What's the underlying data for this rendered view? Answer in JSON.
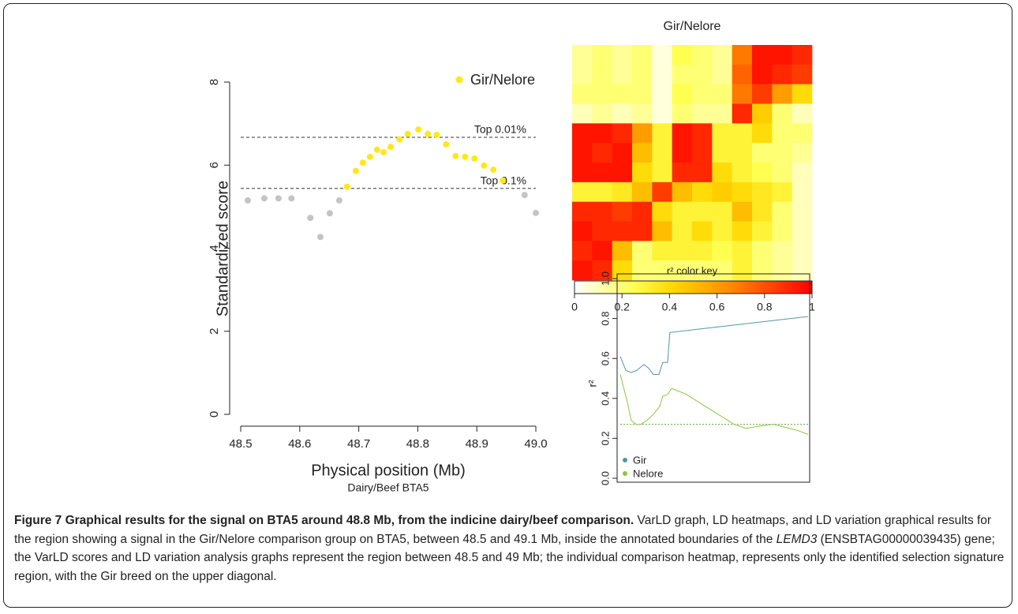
{
  "chart_data": [
    {
      "type": "scatter",
      "ylabel": "Standardized score",
      "xlabel": "Physical position (Mb)",
      "subtitle": "Dairy/Beef BTA5",
      "xlim": [
        48.5,
        49.0
      ],
      "xticks": [
        48.5,
        48.6,
        48.7,
        48.8,
        48.9,
        {
          "value": 49.0,
          "label": "49.0"
        }
      ],
      "ylim": [
        0,
        8
      ],
      "yticks": [
        0,
        2,
        4,
        6,
        8
      ],
      "series": [
        {
          "color": "#c4c4c4",
          "x": [
            48.512,
            48.54,
            48.564,
            48.586,
            48.618,
            48.635,
            48.651,
            48.667,
            48.981,
            49.0
          ],
          "values": [
            5.15,
            5.2,
            5.2,
            5.2,
            4.73,
            4.27,
            4.84,
            5.15,
            5.28,
            4.85
          ]
        },
        {
          "name": "Gir/Nelore",
          "color": "#ffe81a",
          "x": [
            48.68,
            48.695,
            48.707,
            48.719,
            48.731,
            48.742,
            48.754,
            48.769,
            48.783,
            48.801,
            48.817,
            48.832,
            48.848,
            48.864,
            48.88,
            48.896,
            48.912,
            48.928,
            48.944
          ],
          "values": [
            5.48,
            5.86,
            6.06,
            6.2,
            6.37,
            6.31,
            6.44,
            6.62,
            6.75,
            6.86,
            6.75,
            6.73,
            6.5,
            6.22,
            6.2,
            6.16,
            5.99,
            5.89,
            5.63
          ]
        }
      ],
      "annotations": [
        {
          "y": 6.67,
          "text": "Top 0.01%"
        },
        {
          "y": 5.44,
          "text": "Top 0.1%"
        }
      ]
    },
    {
      "type": "heatmap",
      "title": "Gir/Nelore",
      "zlabel": "r² color key",
      "zlim": [
        0,
        1
      ],
      "zticks": [
        0,
        0.2,
        0.4,
        0.6,
        0.8,
        1
      ],
      "values": [
        [
          0.15,
          0.2,
          0.15,
          0.2,
          0.05,
          0.25,
          0.2,
          0.15,
          0.7,
          0.95,
          0.95,
          0.9
        ],
        [
          0.15,
          0.2,
          0.15,
          0.2,
          0.05,
          0.2,
          0.2,
          0.15,
          0.75,
          0.95,
          0.9,
          0.85
        ],
        [
          0.2,
          0.2,
          0.2,
          0.2,
          0.05,
          0.25,
          0.2,
          0.2,
          0.7,
          0.85,
          0.6,
          0.4
        ],
        [
          0.1,
          0.15,
          0.1,
          0.15,
          0.05,
          0.2,
          0.15,
          0.15,
          0.9,
          0.45,
          0.2,
          0.1
        ],
        [
          0.95,
          0.95,
          0.9,
          0.6,
          0.3,
          0.95,
          0.9,
          0.3,
          0.3,
          0.4,
          0.2,
          0.2
        ],
        [
          0.95,
          0.9,
          0.95,
          0.5,
          0.3,
          0.95,
          0.9,
          0.3,
          0.3,
          0.2,
          0.2,
          0.15
        ],
        [
          0.95,
          0.95,
          0.95,
          0.4,
          0.3,
          0.9,
          0.9,
          0.4,
          0.3,
          0.25,
          0.2,
          0.1
        ],
        [
          0.3,
          0.3,
          0.35,
          0.5,
          0.85,
          0.5,
          0.4,
          0.45,
          0.4,
          0.35,
          0.3,
          0.1
        ],
        [
          0.9,
          0.9,
          0.85,
          0.9,
          0.4,
          0.3,
          0.3,
          0.3,
          0.5,
          0.35,
          0.2,
          0.1
        ],
        [
          0.95,
          0.9,
          0.9,
          0.9,
          0.5,
          0.3,
          0.4,
          0.3,
          0.4,
          0.3,
          0.2,
          0.1
        ],
        [
          0.9,
          0.95,
          0.5,
          0.2,
          0.3,
          0.3,
          0.3,
          0.25,
          0.3,
          0.2,
          0.15,
          0.1
        ],
        [
          0.95,
          0.9,
          0.4,
          0.2,
          0.2,
          0.2,
          0.2,
          0.2,
          0.3,
          0.2,
          0.15,
          0.1
        ]
      ]
    },
    {
      "type": "line",
      "ylabel": "r²",
      "xlim": [
        48.5,
        49.0
      ],
      "ylim": [
        0,
        1
      ],
      "yticks": [
        {
          "value": 0,
          "label": "0.0"
        },
        0.2,
        0.4,
        0.6,
        0.8,
        {
          "value": 1,
          "label": "1.0"
        }
      ],
      "threshold": 0.27,
      "series": [
        {
          "name": "Gir",
          "color": "#4f96a8",
          "x": [
            48.5,
            48.515,
            48.529,
            48.544,
            48.563,
            48.576,
            48.588,
            48.603,
            48.613,
            48.626,
            48.632,
            49.0
          ],
          "values": [
            0.61,
            0.54,
            0.53,
            0.54,
            0.57,
            0.55,
            0.52,
            0.52,
            0.58,
            0.58,
            0.73,
            0.81
          ]
        },
        {
          "name": "Nelore",
          "color": "#8dc63f",
          "x": [
            48.5,
            48.519,
            48.529,
            48.542,
            48.555,
            48.571,
            48.588,
            48.605,
            48.613,
            48.626,
            48.637,
            48.676,
            48.718,
            48.761,
            48.803,
            48.834,
            48.866,
            48.908,
            48.95,
            48.971,
            49.0
          ],
          "values": [
            0.52,
            0.38,
            0.29,
            0.27,
            0.27,
            0.29,
            0.32,
            0.36,
            0.41,
            0.42,
            0.45,
            0.42,
            0.37,
            0.32,
            0.27,
            0.25,
            0.26,
            0.27,
            0.25,
            0.24,
            0.22
          ]
        }
      ]
    }
  ],
  "caption": {
    "title": "Figure 7 Graphical results for the signal on BTA5 around 48.8 Mb, from the indicine dairy/beef comparison.",
    "text_before": " VarLD graph, LD heatmaps, and LD variation graphical results for the region showing a signal in the Gir/Nelore comparison group on BTA5, between 48.5 and 49.1 Mb, inside the annotated boundaries of the ",
    "gene": "LEMD3",
    "text_after": " (ENSBTAG00000039435) gene; the VarLD scores and LD variation analysis graphs represent the region between 48.5 and 49 Mb; the individual comparison heatmap, represents only the identified selection signature region, with the Gir breed on the upper diagonal."
  }
}
